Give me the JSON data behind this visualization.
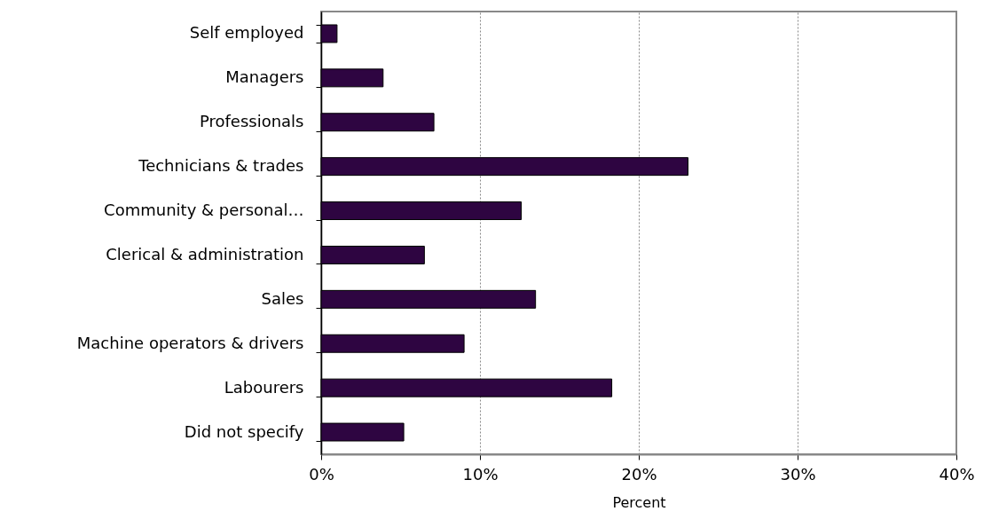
{
  "chart_data": {
    "type": "bar",
    "orientation": "horizontal",
    "xlabel": "Percent",
    "categories": [
      "Self employed",
      "Managers",
      "Professionals",
      "Technicians & trades",
      "Community & personal…",
      "Clerical & administration",
      "Sales",
      "Machine operators & drivers",
      "Labourers",
      "Did not specify"
    ],
    "values": [
      1.0,
      3.9,
      7.1,
      23.1,
      12.6,
      6.5,
      13.5,
      9.0,
      18.3,
      5.2
    ],
    "color": "#2e0541",
    "xlim": [
      0,
      40
    ],
    "xticks": [
      {
        "value": 0,
        "label": "0%"
      },
      {
        "value": 10,
        "label": "10%"
      },
      {
        "value": 20,
        "label": "20%"
      },
      {
        "value": 30,
        "label": "30%"
      },
      {
        "value": 40,
        "label": "40%"
      }
    ],
    "grid": "x"
  }
}
